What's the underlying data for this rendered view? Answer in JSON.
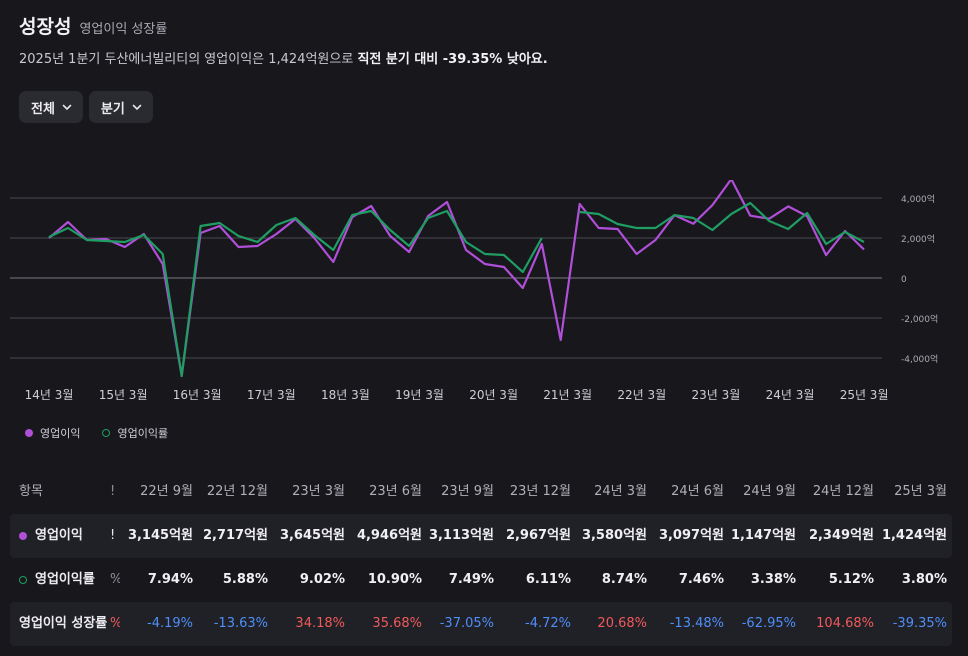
{
  "header": {
    "title": "성장성",
    "subtitle": "영업이익 성장률",
    "summary_prefix": "2025년 1분기 두산에너빌리티의 영업이익은 1,424억원으로",
    "summary_bold": "직전 분기 대비 -39.35% 낮아요."
  },
  "filters": {
    "range": "전체",
    "period": "분기"
  },
  "legend": {
    "profit": "영업이익",
    "margin": "영업이익률"
  },
  "colors": {
    "profit": "#b04fd8",
    "margin": "#1f9d63",
    "background": "#17171c",
    "negative": "#4f8ef7",
    "positive": "#f05a5a"
  },
  "chart_data": {
    "type": "line",
    "x_tick_labels": [
      "14년 3월",
      "15년 3월",
      "16년 3월",
      "17년 3월",
      "18년 3월",
      "19년 3월",
      "20년 3월",
      "21년 3월",
      "22년 3월",
      "23년 3월",
      "24년 3월",
      "25년 3월"
    ],
    "y_tick_labels": [
      "4,000억",
      "2,000억",
      "0",
      "-2,000억",
      "-4,000억"
    ],
    "ylim": [
      -5000,
      6000
    ],
    "grid": true,
    "series": [
      {
        "name": "영업이익",
        "values": [
          2000,
          2800,
          1900,
          1950,
          1550,
          2200,
          700,
          -4900,
          2250,
          2600,
          1550,
          1600,
          2200,
          2950,
          2000,
          800,
          3050,
          3600,
          2100,
          1300,
          3100,
          3800,
          1400,
          700,
          550,
          -500,
          1700,
          -3100,
          3700,
          2500,
          2450,
          1200,
          1900,
          3145,
          2717,
          3645,
          4946,
          3113,
          2967,
          3580,
          3097,
          1147,
          2349,
          1424
        ]
      },
      {
        "name": "영업이익률",
        "values": [
          2050,
          2500,
          1900,
          1850,
          1800,
          2150,
          1200,
          -4900,
          2600,
          2750,
          2100,
          1800,
          2650,
          3000,
          2150,
          1400,
          3150,
          3350,
          2400,
          1600,
          3000,
          3350,
          1800,
          1200,
          1150,
          300,
          2000,
          null,
          3300,
          3200,
          2700,
          2500,
          2500,
          3145,
          3000,
          2400,
          3200,
          3750,
          2850,
          2450,
          3250,
          1700,
          2300,
          1800
        ]
      }
    ]
  },
  "table": {
    "header_label": "항목",
    "columns": [
      "22년 9월",
      "22년 12월",
      "23년 3월",
      "23년 6월",
      "23년 9월",
      "23년 12월",
      "24년 3월",
      "24년 6월",
      "24년 9월",
      "24년 12월",
      "25년 3월"
    ],
    "rows": [
      {
        "label": "영업이익",
        "values": [
          "3,145억원",
          "2,717억원",
          "3,645억원",
          "4,946억원",
          "3,113억원",
          "2,967억원",
          "3,580억원",
          "3,097억원",
          "1,147억원",
          "2,349억원",
          "1,424억원"
        ]
      },
      {
        "label": "영업이익률",
        "values": [
          "7.94%",
          "5.88%",
          "9.02%",
          "10.90%",
          "7.49%",
          "6.11%",
          "8.74%",
          "7.46%",
          "3.38%",
          "5.12%",
          "3.80%"
        ]
      },
      {
        "label": "영업이익 성장률",
        "values": [
          "-4.19%",
          "-13.63%",
          "34.18%",
          "35.68%",
          "-37.05%",
          "-4.72%",
          "20.68%",
          "-13.48%",
          "-62.95%",
          "104.68%",
          "-39.35%"
        ]
      }
    ]
  }
}
